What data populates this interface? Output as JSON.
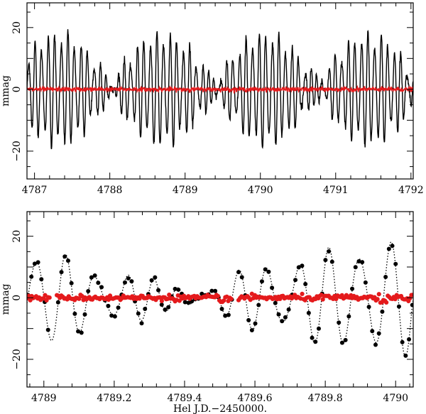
{
  "chart_data": [
    {
      "type": "line",
      "panel": "top",
      "title": "",
      "xlabel": "",
      "ylabel": "mmag",
      "xlim": [
        4786.9,
        4792.03
      ],
      "ylim": [
        -29,
        28
      ],
      "y_inverted": true,
      "xticks": [
        4787,
        4788,
        4789,
        4790,
        4791,
        4792
      ],
      "xtick_labels": [
        "4787",
        "4788",
        "4789",
        "4790",
        "4791",
        "4792"
      ],
      "yticks": [
        20,
        0,
        -20
      ],
      "ytick_labels": [
        "20",
        "0",
        "−20"
      ],
      "series": [
        {
          "color": "#000000",
          "style": "solid line",
          "description_of_signal": "multiperiodic pulsation light curve, dominant period ~0.085 d, amplitude beating between ~5 and ~23 mmag",
          "envelope_points": {
            "x": [
              4787.0,
              4787.3,
              4787.55,
              4787.9,
              4788.2,
              4788.45,
              4788.8,
              4789.1,
              4789.45,
              4789.8,
              4790.1,
              4790.35,
              4790.7,
              4791.0,
              4791.3,
              4791.6,
              4791.9
            ],
            "amplitude": [
              12,
              10,
              22,
              9,
              12,
              22,
              13,
              17,
              21,
              12,
              18,
              16,
              21,
              12,
              10,
              20,
              19
            ]
          }
        },
        {
          "color": "#e41a1c",
          "style": "solid line",
          "description_of_signal": "residuals after prewhitening, scatter about 0 within ~±1 mmag"
        }
      ]
    },
    {
      "type": "line",
      "panel": "bottom",
      "title": "",
      "xlabel": "Hel J.D.−2450000.",
      "ylabel": "mmag",
      "xlim": [
        4788.952,
        4790.05
      ],
      "ylim": [
        -29,
        28
      ],
      "y_inverted": true,
      "xticks": [
        4789,
        4789.2,
        4789.4,
        4789.6,
        4789.8,
        4790
      ],
      "xtick_labels": [
        "4789",
        "4789.2",
        "4789.4",
        "4789.6",
        "4789.8",
        "4790"
      ],
      "yticks": [
        20,
        0,
        -20
      ],
      "ytick_labels": [
        "20",
        "0",
        "−20"
      ],
      "series": [
        {
          "color": "#000000",
          "style": "filled circles joined by dotted fit",
          "description_of_signal": "observed magnitudes, peaks between ~12 and ~19 mmag, troughs down to ~-21 mmag at about 4789.45"
        },
        {
          "color": "#e41a1c",
          "style": "filled circles",
          "description_of_signal": "residuals scattered about 0 within ~±2 mmag"
        }
      ]
    }
  ]
}
